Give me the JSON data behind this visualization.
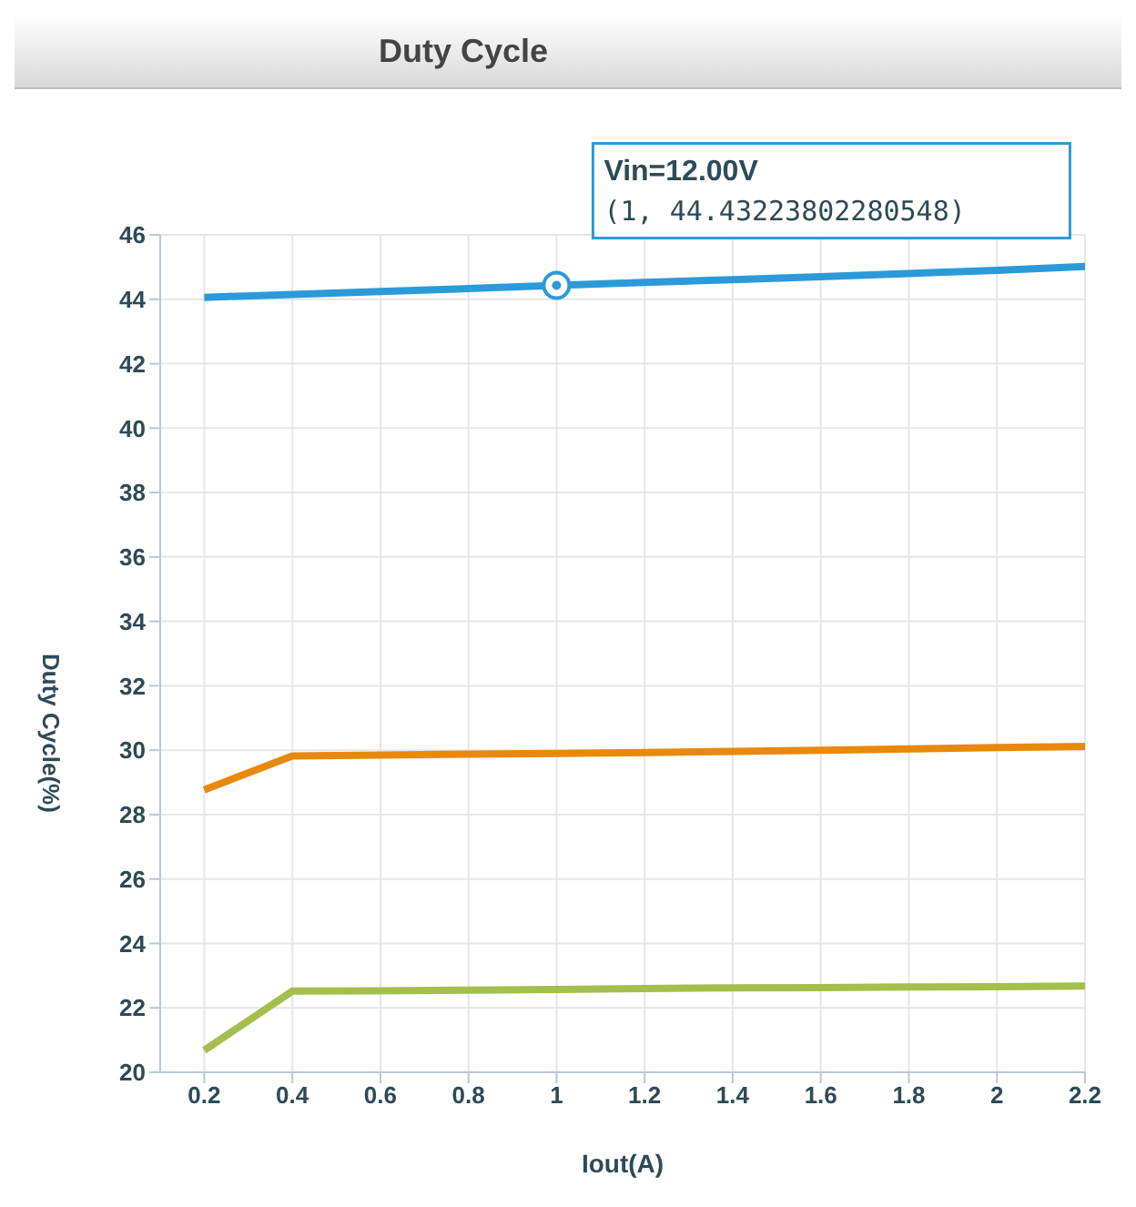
{
  "chart_data": {
    "type": "line",
    "title": "Duty Cycle",
    "xlabel": "Iout(A)",
    "ylabel": "Duty Cycle(%)",
    "x": [
      0.2,
      0.4,
      0.6,
      0.8,
      1,
      1.2,
      1.4,
      1.6,
      1.8,
      2,
      2.2
    ],
    "series": [
      {
        "color": "#2b9ad9",
        "values": [
          44.06,
          44.15,
          44.24,
          44.33,
          44.43,
          44.52,
          44.61,
          44.7,
          44.8,
          44.9,
          45.02
        ]
      },
      {
        "color": "#e8890c",
        "values": [
          28.77,
          29.82,
          29.85,
          29.88,
          29.9,
          29.93,
          29.96,
          30.0,
          30.04,
          30.08,
          30.12
        ]
      },
      {
        "color": "#a3bf4c",
        "values": [
          20.68,
          22.52,
          22.53,
          22.55,
          22.57,
          22.6,
          22.62,
          22.63,
          22.65,
          22.66,
          22.68
        ]
      }
    ],
    "annotations": [
      "Vin=12.00V",
      {
        "text": "(1, 44.43223802280548)",
        "x": 1,
        "y": 44.43
      }
    ],
    "xlim": [
      0.1,
      2.2
    ],
    "xticks": [
      0.2,
      0.4,
      0.6,
      0.8,
      1,
      1.2,
      1.4,
      1.6,
      1.8,
      2,
      2.2
    ],
    "ylim": [
      20,
      46
    ],
    "yticks": [
      20,
      22,
      24,
      26,
      28,
      30,
      32,
      34,
      36,
      38,
      40,
      42,
      44,
      46
    ],
    "grid": true,
    "legend": false,
    "marker": "none",
    "line_style": "solid"
  }
}
